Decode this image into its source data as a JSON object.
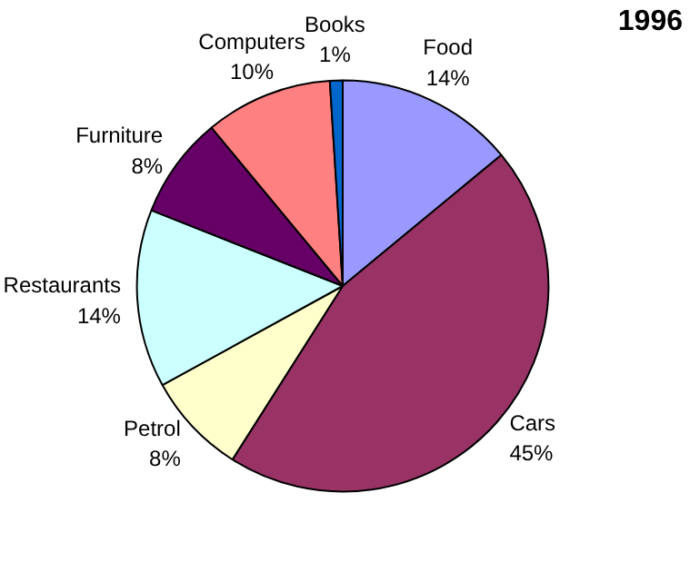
{
  "chart_data": {
    "type": "pie",
    "title": "1996",
    "categories": [
      "Food",
      "Cars",
      "Petrol",
      "Restaurants",
      "Furniture",
      "Computers",
      "Books"
    ],
    "values": [
      14,
      45,
      8,
      14,
      8,
      10,
      1
    ],
    "value_labels": [
      "14%",
      "45%",
      "8%",
      "14%",
      "8%",
      "10%",
      "1%"
    ],
    "colors": [
      "#9999ff",
      "#993366",
      "#ffffcc",
      "#ccffff",
      "#660066",
      "#ff8080",
      "#0066cc"
    ]
  }
}
